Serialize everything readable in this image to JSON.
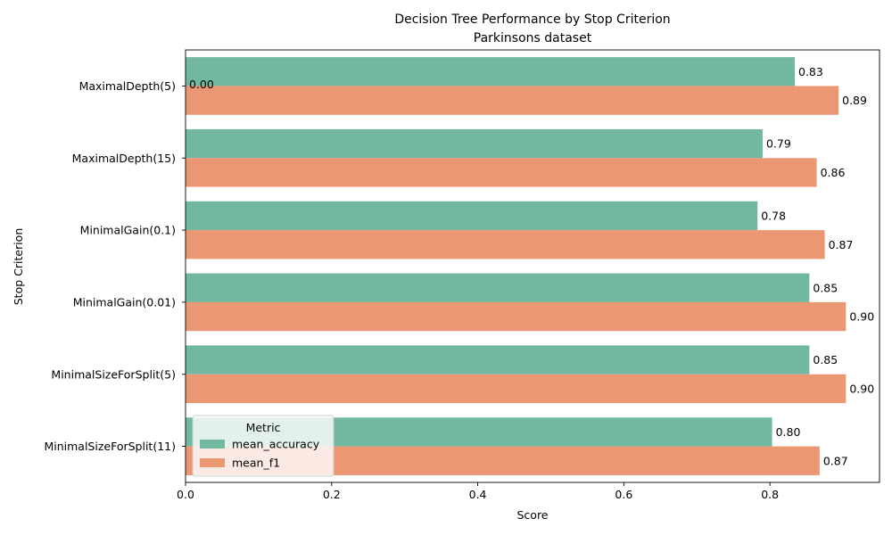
{
  "chart_data": {
    "type": "bar",
    "orientation": "horizontal",
    "title": "Decision Tree Performance by Stop Criterion",
    "subtitle": "Parkinsons dataset",
    "xlabel": "Score",
    "ylabel": "Stop Criterion",
    "xlim": [
      0,
      0.95
    ],
    "xticks": [
      0.0,
      0.2,
      0.4,
      0.6,
      0.8
    ],
    "xtick_labels": [
      "0.0",
      "0.2",
      "0.4",
      "0.6",
      "0.8"
    ],
    "categories": [
      "MaximalDepth(5)",
      "MaximalDepth(15)",
      "MinimalGain(0.1)",
      "MinimalGain(0.01)",
      "MinimalSizeForSplit(5)",
      "MinimalSizeForSplit(11)"
    ],
    "series": [
      {
        "name": "mean_accuracy",
        "color": "#72b7a0",
        "values": [
          0.834,
          0.79,
          0.783,
          0.854,
          0.854,
          0.803
        ],
        "labels": [
          "0.83",
          "0.79",
          "0.78",
          "0.85",
          "0.85",
          "0.80"
        ]
      },
      {
        "name": "mean_f1",
        "color": "#eb9773",
        "values": [
          0.894,
          0.864,
          0.875,
          0.904,
          0.904,
          0.868
        ],
        "labels": [
          "0.89",
          "0.86",
          "0.87",
          "0.90",
          "0.90",
          "0.87"
        ]
      }
    ],
    "extra_annotation": "0.00",
    "legend": {
      "title": "Metric",
      "placement": "lower-left"
    },
    "grid": false
  }
}
